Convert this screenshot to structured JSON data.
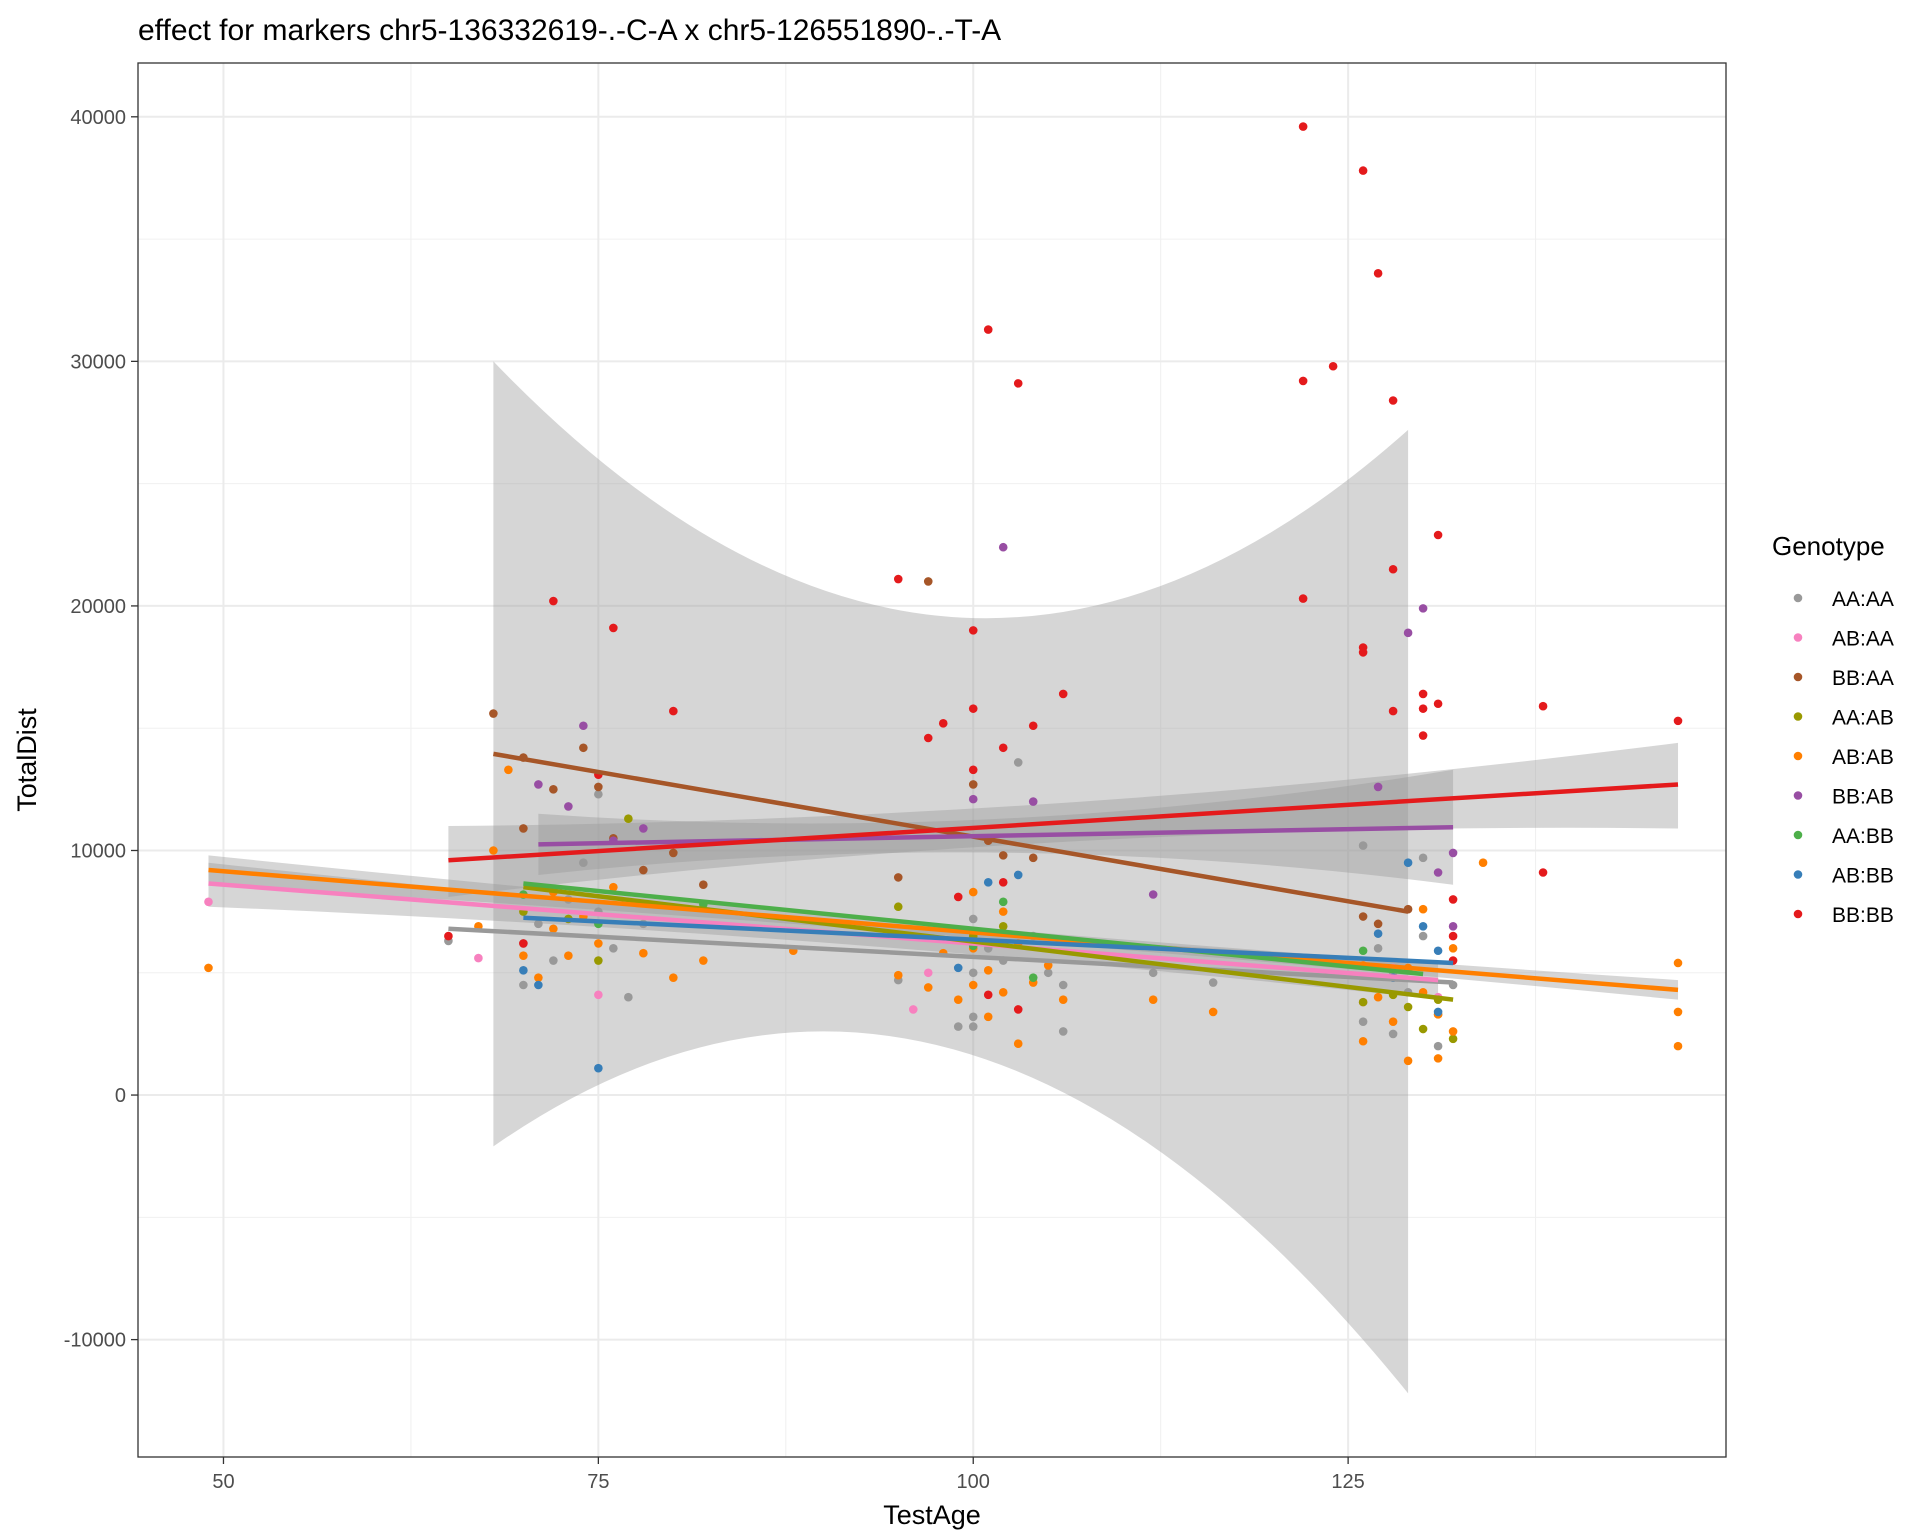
{
  "chart_data": {
    "type": "scatter",
    "title": "effect for markers chr5-136332619-.-C-A x chr5-126551890-.-T-A",
    "xlabel": "TestAge",
    "ylabel": "TotalDist",
    "xlim": [
      44.3,
      150.2
    ],
    "ylim": [
      -14800,
      42200
    ],
    "x_ticks": [
      50,
      75,
      100,
      125
    ],
    "y_ticks": [
      -10000,
      0,
      10000,
      20000,
      30000,
      40000
    ],
    "x_tick_labels": [
      "50",
      "75",
      "100",
      "125"
    ],
    "y_tick_labels": [
      "-10000",
      "0",
      "10000",
      "20000",
      "30000",
      "40000"
    ],
    "grid": true,
    "legend": {
      "title": "Genotype",
      "position": "right"
    },
    "series": [
      {
        "name": "AA:AA",
        "color": "#999999",
        "points": [
          [
            65,
            6300
          ],
          [
            70,
            4500
          ],
          [
            70,
            6200
          ],
          [
            71,
            7000
          ],
          [
            72,
            5500
          ],
          [
            73,
            8000
          ],
          [
            74,
            9500
          ],
          [
            75,
            12300
          ],
          [
            75,
            7500
          ],
          [
            76,
            6000
          ],
          [
            77,
            4000
          ],
          [
            78,
            7000
          ],
          [
            95,
            4700
          ],
          [
            99,
            2800
          ],
          [
            100,
            2800
          ],
          [
            100,
            3200
          ],
          [
            100,
            5000
          ],
          [
            100,
            7200
          ],
          [
            101,
            6000
          ],
          [
            102,
            5500
          ],
          [
            103,
            13600
          ],
          [
            104,
            6500
          ],
          [
            105,
            5000
          ],
          [
            106,
            2600
          ],
          [
            106,
            4500
          ],
          [
            112,
            5000
          ],
          [
            116,
            4600
          ],
          [
            126,
            10200
          ],
          [
            126,
            3000
          ],
          [
            127,
            6000
          ],
          [
            128,
            5000
          ],
          [
            128,
            2500
          ],
          [
            129,
            4200
          ],
          [
            130,
            9700
          ],
          [
            130,
            6500
          ],
          [
            131,
            3300
          ],
          [
            131,
            2000
          ],
          [
            132,
            4500
          ]
        ],
        "fit": {
          "x": [
            65,
            132
          ],
          "y": [
            6800,
            4600
          ]
        }
      },
      {
        "name": "AB:AA",
        "color": "#F781BF",
        "points": [
          [
            49,
            7900
          ],
          [
            67,
            5600
          ],
          [
            75,
            4100
          ],
          [
            96,
            3500
          ],
          [
            97,
            5000
          ],
          [
            126,
            3800
          ],
          [
            128,
            5200
          ],
          [
            131,
            4000
          ]
        ],
        "fit": {
          "x": [
            49,
            131
          ],
          "y": [
            8650,
            4700
          ]
        },
        "band": {
          "lower": [
            7700,
            3900
          ],
          "upper": [
            9500,
            5500
          ]
        }
      },
      {
        "name": "BB:AA",
        "color": "#A65628",
        "points": [
          [
            68,
            15600
          ],
          [
            70,
            13800
          ],
          [
            70,
            10900
          ],
          [
            72,
            12500
          ],
          [
            74,
            14200
          ],
          [
            75,
            12600
          ],
          [
            76,
            10500
          ],
          [
            78,
            9200
          ],
          [
            80,
            9900
          ],
          [
            82,
            8600
          ],
          [
            95,
            8900
          ],
          [
            97,
            21000
          ],
          [
            100,
            12700
          ],
          [
            101,
            10400
          ],
          [
            102,
            9800
          ],
          [
            104,
            9700
          ],
          [
            126,
            7300
          ],
          [
            127,
            7000
          ],
          [
            129,
            7600
          ]
        ],
        "fit": {
          "x": [
            68,
            129
          ],
          "y": [
            13950,
            7500
          ]
        },
        "band": {
          "lower": [
            -2100,
            -12200
          ],
          "upper": [
            30000,
            27200
          ]
        }
      },
      {
        "name": "AA:AB",
        "color": "#999900",
        "points": [
          [
            70,
            7500
          ],
          [
            73,
            7200
          ],
          [
            75,
            5500
          ],
          [
            77,
            11300
          ],
          [
            95,
            7700
          ],
          [
            100,
            6500
          ],
          [
            102,
            6900
          ],
          [
            126,
            3800
          ],
          [
            128,
            4100
          ],
          [
            129,
            3600
          ],
          [
            130,
            2700
          ],
          [
            131,
            3900
          ],
          [
            132,
            2300
          ]
        ],
        "fit": {
          "x": [
            70,
            132
          ],
          "y": [
            8500,
            3900
          ]
        }
      },
      {
        "name": "AB:AB",
        "color": "#FF7F00",
        "points": [
          [
            49,
            5200
          ],
          [
            67,
            6900
          ],
          [
            68,
            10000
          ],
          [
            69,
            13300
          ],
          [
            70,
            5700
          ],
          [
            71,
            4800
          ],
          [
            72,
            6800
          ],
          [
            72,
            8300
          ],
          [
            73,
            5700
          ],
          [
            74,
            7300
          ],
          [
            75,
            6200
          ],
          [
            76,
            8500
          ],
          [
            78,
            5800
          ],
          [
            80,
            4800
          ],
          [
            82,
            5500
          ],
          [
            88,
            5900
          ],
          [
            95,
            4900
          ],
          [
            97,
            4400
          ],
          [
            98,
            5800
          ],
          [
            99,
            3900
          ],
          [
            100,
            4500
          ],
          [
            100,
            6000
          ],
          [
            100,
            8300
          ],
          [
            101,
            3200
          ],
          [
            101,
            5100
          ],
          [
            102,
            4200
          ],
          [
            102,
            7500
          ],
          [
            103,
            2100
          ],
          [
            103,
            6200
          ],
          [
            104,
            4600
          ],
          [
            105,
            5300
          ],
          [
            106,
            3900
          ],
          [
            112,
            3900
          ],
          [
            116,
            3400
          ],
          [
            126,
            2200
          ],
          [
            126,
            5300
          ],
          [
            127,
            4000
          ],
          [
            128,
            3000
          ],
          [
            129,
            1400
          ],
          [
            129,
            5200
          ],
          [
            130,
            4200
          ],
          [
            130,
            7600
          ],
          [
            131,
            1500
          ],
          [
            131,
            3300
          ],
          [
            132,
            2600
          ],
          [
            132,
            6000
          ],
          [
            134,
            9500
          ],
          [
            147,
            5400
          ],
          [
            147,
            3400
          ],
          [
            147,
            2000
          ]
        ],
        "fit": {
          "x": [
            49,
            147
          ],
          "y": [
            9200,
            4300
          ]
        },
        "band": {
          "lower": [
            8600,
            3900
          ],
          "upper": [
            9800,
            4700
          ]
        }
      },
      {
        "name": "BB:AB",
        "color": "#984EA3",
        "points": [
          [
            71,
            12700
          ],
          [
            73,
            11800
          ],
          [
            74,
            15100
          ],
          [
            76,
            10400
          ],
          [
            78,
            10900
          ],
          [
            100,
            12100
          ],
          [
            102,
            22400
          ],
          [
            104,
            12000
          ],
          [
            112,
            8200
          ],
          [
            127,
            12600
          ],
          [
            129,
            18900
          ],
          [
            130,
            19900
          ],
          [
            131,
            9100
          ],
          [
            132,
            9900
          ],
          [
            132,
            6900
          ]
        ],
        "fit": {
          "x": [
            71,
            132
          ],
          "y": [
            10250,
            10950
          ]
        },
        "band": {
          "lower": [
            9000,
            8600
          ],
          "upper": [
            11500,
            13300
          ]
        }
      },
      {
        "name": "AA:BB",
        "color": "#4DAF4A",
        "points": [
          [
            70,
            8200
          ],
          [
            75,
            7000
          ],
          [
            82,
            7800
          ],
          [
            100,
            6100
          ],
          [
            102,
            7900
          ],
          [
            104,
            4800
          ],
          [
            126,
            5900
          ],
          [
            129,
            5100
          ]
        ],
        "fit": {
          "x": [
            70,
            130
          ],
          "y": [
            8650,
            4950
          ]
        }
      },
      {
        "name": "AB:BB",
        "color": "#377EB8",
        "points": [
          [
            70,
            5100
          ],
          [
            71,
            4500
          ],
          [
            75,
            1100
          ],
          [
            99,
            5200
          ],
          [
            101,
            8700
          ],
          [
            103,
            9000
          ],
          [
            127,
            6600
          ],
          [
            128,
            4800
          ],
          [
            129,
            9500
          ],
          [
            130,
            6900
          ],
          [
            131,
            3400
          ],
          [
            131,
            5900
          ]
        ],
        "fit": {
          "x": [
            70,
            132
          ],
          "y": [
            7250,
            5400
          ]
        }
      },
      {
        "name": "BB:BB",
        "color": "#E41A1C",
        "points": [
          [
            65,
            6500
          ],
          [
            70,
            6200
          ],
          [
            72,
            20200
          ],
          [
            75,
            13100
          ],
          [
            76,
            19100
          ],
          [
            80,
            15700
          ],
          [
            95,
            21100
          ],
          [
            97,
            14600
          ],
          [
            98,
            15200
          ],
          [
            99,
            8100
          ],
          [
            100,
            19000
          ],
          [
            100,
            15800
          ],
          [
            100,
            13300
          ],
          [
            101,
            31300
          ],
          [
            101,
            4100
          ],
          [
            102,
            14200
          ],
          [
            102,
            8700
          ],
          [
            103,
            29100
          ],
          [
            103,
            3500
          ],
          [
            104,
            15100
          ],
          [
            106,
            16400
          ],
          [
            122,
            39600
          ],
          [
            122,
            29200
          ],
          [
            122,
            20300
          ],
          [
            124,
            29800
          ],
          [
            126,
            37800
          ],
          [
            126,
            18300
          ],
          [
            126,
            18100
          ],
          [
            127,
            33600
          ],
          [
            128,
            28400
          ],
          [
            128,
            21500
          ],
          [
            128,
            15700
          ],
          [
            130,
            16400
          ],
          [
            130,
            15800
          ],
          [
            130,
            14700
          ],
          [
            131,
            22900
          ],
          [
            131,
            16000
          ],
          [
            132,
            8000
          ],
          [
            132,
            6500
          ],
          [
            132,
            5500
          ],
          [
            138,
            15900
          ],
          [
            138,
            9100
          ],
          [
            147,
            15300
          ]
        ],
        "fit": {
          "x": [
            65,
            147
          ],
          "y": [
            9600,
            12700
          ]
        },
        "band": {
          "lower": [
            8100,
            10900
          ],
          "upper": [
            11000,
            14400
          ]
        }
      }
    ]
  }
}
